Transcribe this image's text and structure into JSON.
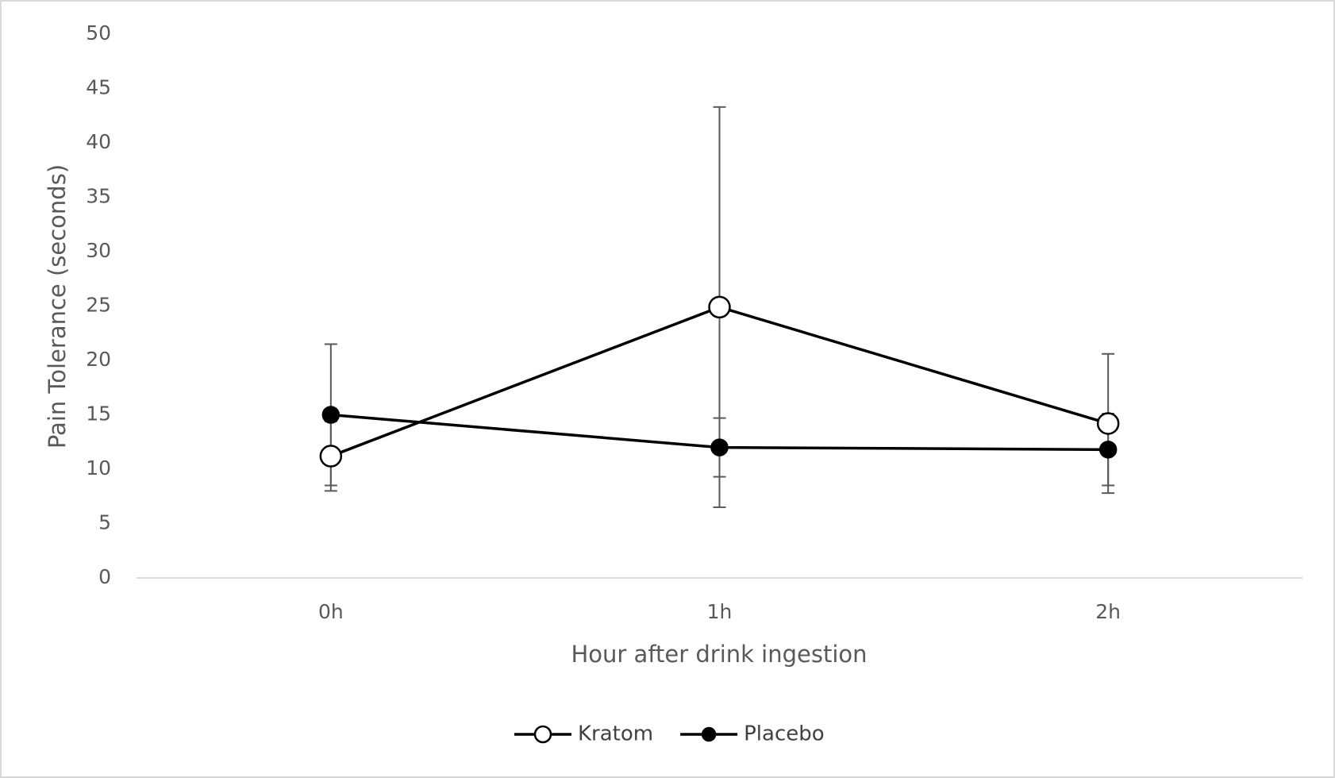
{
  "chart_data": {
    "type": "line",
    "categories": [
      "0h",
      "1h",
      "2h"
    ],
    "series": [
      {
        "name": "Kratom",
        "color": "#000000",
        "marker": "open-circle",
        "values": [
          11.2,
          24.9,
          14.2
        ],
        "errors": [
          3.2,
          18.4,
          6.4
        ]
      },
      {
        "name": "Placebo",
        "color": "#000000",
        "marker": "filled-circle",
        "values": [
          15.0,
          12.0,
          11.8
        ],
        "errors": [
          6.5,
          2.7,
          3.3
        ]
      }
    ],
    "x_label": "Hour after drink ingestion",
    "y_label": "Pain Tolerance (seconds)",
    "ylim": [
      0,
      50
    ],
    "yticks": [
      0,
      5,
      10,
      15,
      20,
      25,
      30,
      35,
      40,
      45,
      50
    ],
    "grid": false,
    "legend": "bottom"
  }
}
